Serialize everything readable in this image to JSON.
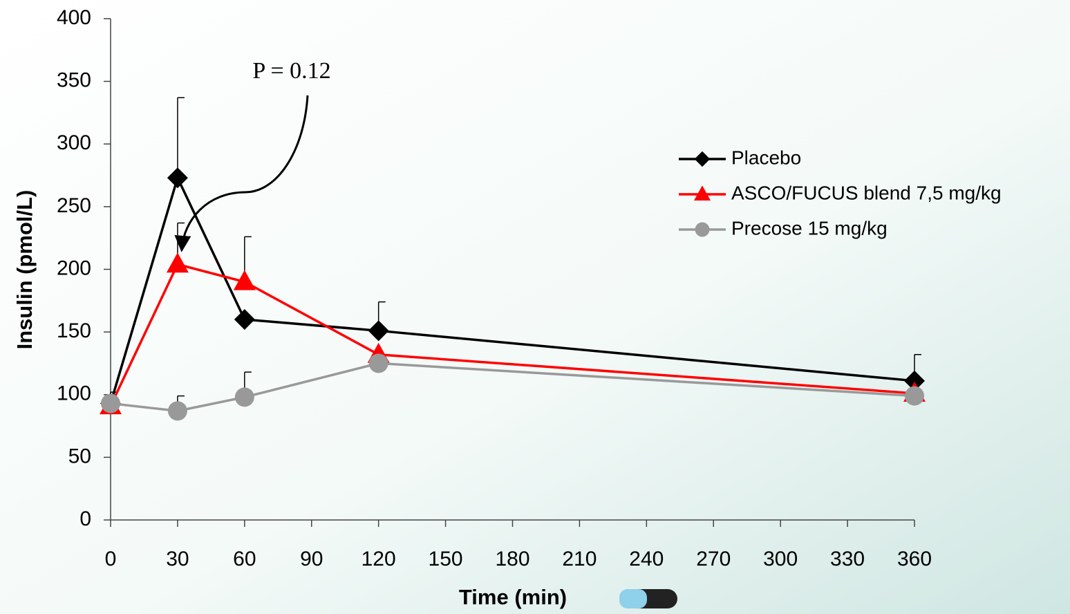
{
  "chart_data": {
    "type": "line",
    "x_label": "Time (min)",
    "y_label": "Insulin (pmol/L)",
    "annotation": "P = 0.12",
    "x": [
      0,
      30,
      60,
      120,
      360
    ],
    "series": [
      {
        "name": "Placebo",
        "color": "#000000",
        "marker": "diamond",
        "values": [
          93,
          273,
          160,
          151,
          111
        ],
        "errors": [
          9,
          64,
          null,
          23,
          21
        ]
      },
      {
        "name": "ASCO/FUCUS blend 7,5 mg/kg",
        "color": "#ff0000",
        "marker": "triangle",
        "values": [
          91,
          204,
          190,
          132,
          101
        ],
        "errors": [
          null,
          33,
          36,
          null,
          null
        ]
      },
      {
        "name": "Precose 15 mg/kg",
        "color": "#999999",
        "marker": "circle",
        "values": [
          93,
          87,
          98,
          125,
          99
        ],
        "errors": [
          null,
          12,
          20,
          null,
          null
        ]
      }
    ],
    "xlim": [
      0,
      360
    ],
    "xticks": [
      0,
      30,
      60,
      90,
      120,
      150,
      180,
      210,
      240,
      270,
      300,
      330,
      360
    ],
    "ylim": [
      0,
      400
    ],
    "yticks": [
      0,
      50,
      100,
      150,
      200,
      250,
      300,
      350,
      400
    ],
    "legend": "right"
  }
}
